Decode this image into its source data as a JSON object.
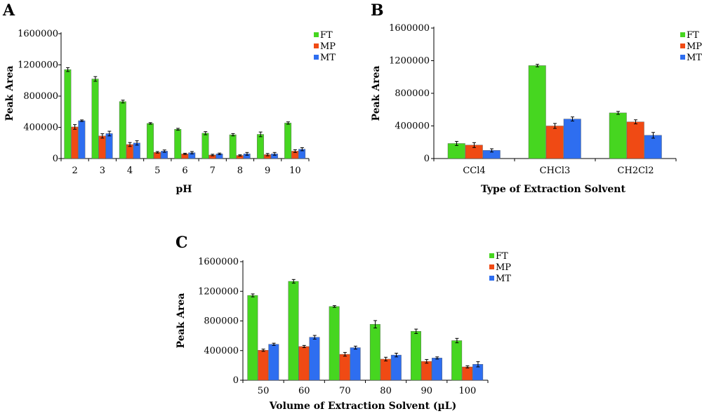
{
  "colors": {
    "FT": "#46d620",
    "MP": "#f04a14",
    "MT": "#2e6ef0"
  },
  "chart_data": [
    {
      "panel": "A",
      "type": "bar",
      "xlabel": "pH",
      "ylabel": "Peak Area",
      "ylim": [
        0,
        1600000
      ],
      "yticks": [
        "0",
        "400000",
        "800000",
        "1200000",
        "1600000"
      ],
      "legend_position": "top-right",
      "categories": [
        "2",
        "3",
        "4",
        "5",
        "6",
        "7",
        "8",
        "9",
        "10"
      ],
      "series": [
        {
          "name": "FT",
          "values": [
            1140000,
            1020000,
            730000,
            450000,
            375000,
            325000,
            305000,
            310000,
            455000
          ],
          "errors": [
            25000,
            30000,
            18000,
            10000,
            12000,
            20000,
            15000,
            30000,
            15000
          ]
        },
        {
          "name": "MP",
          "values": [
            405000,
            290000,
            180000,
            80000,
            60000,
            45000,
            40000,
            50000,
            95000
          ],
          "errors": [
            30000,
            28000,
            25000,
            10000,
            8000,
            10000,
            8000,
            15000,
            18000
          ]
        },
        {
          "name": "MT",
          "values": [
            485000,
            320000,
            200000,
            95000,
            75000,
            60000,
            60000,
            60000,
            120000
          ],
          "errors": [
            10000,
            30000,
            28000,
            15000,
            15000,
            10000,
            18000,
            18000,
            20000
          ]
        }
      ]
    },
    {
      "panel": "B",
      "type": "bar",
      "xlabel": "Type of Extraction Solvent",
      "ylabel": "Peak Area",
      "ylim": [
        0,
        1600000
      ],
      "yticks": [
        "0",
        "400000",
        "800000",
        "1200000",
        "1600000"
      ],
      "legend_position": "top-right",
      "categories": [
        "CCl4",
        "CHCl3",
        "CH2Cl2"
      ],
      "series": [
        {
          "name": "FT",
          "values": [
            185000,
            1140000,
            560000
          ],
          "errors": [
            25000,
            15000,
            18000
          ]
        },
        {
          "name": "MP",
          "values": [
            165000,
            400000,
            450000
          ],
          "errors": [
            30000,
            30000,
            25000
          ]
        },
        {
          "name": "MT",
          "values": [
            100000,
            485000,
            285000
          ],
          "errors": [
            20000,
            25000,
            35000
          ]
        }
      ]
    },
    {
      "panel": "C",
      "type": "bar",
      "xlabel": "Volume of Extraction Solvent (µL)",
      "ylabel": "Peak Area",
      "ylim": [
        0,
        1600000
      ],
      "yticks": [
        "0",
        "400000",
        "800000",
        "1200000",
        "1600000"
      ],
      "legend_position": "top-right",
      "categories": [
        "50",
        "60",
        "70",
        "80",
        "90",
        "100"
      ],
      "series": [
        {
          "name": "FT",
          "values": [
            1145000,
            1335000,
            995000,
            755000,
            660000,
            535000
          ],
          "errors": [
            20000,
            25000,
            12000,
            50000,
            30000,
            30000
          ]
        },
        {
          "name": "MP",
          "values": [
            405000,
            455000,
            350000,
            285000,
            255000,
            180000
          ],
          "errors": [
            15000,
            15000,
            25000,
            25000,
            25000,
            15000
          ]
        },
        {
          "name": "MT",
          "values": [
            485000,
            580000,
            440000,
            340000,
            300000,
            215000
          ],
          "errors": [
            15000,
            25000,
            20000,
            25000,
            15000,
            35000
          ]
        }
      ]
    }
  ]
}
